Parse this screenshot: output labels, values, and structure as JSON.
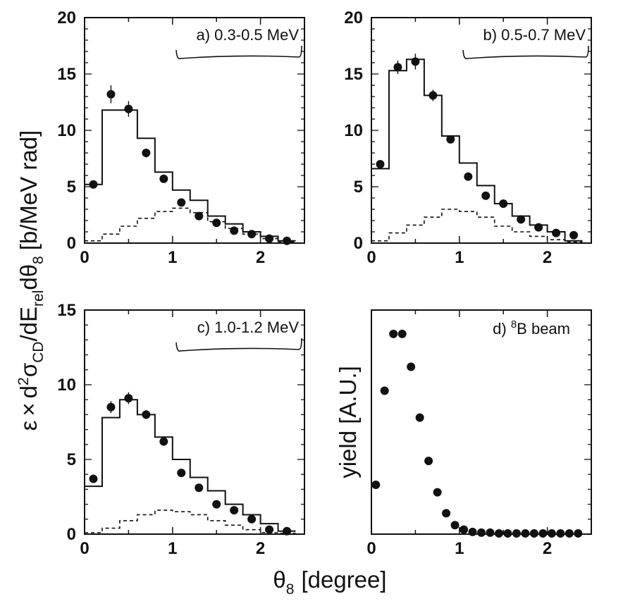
{
  "figure": {
    "ylabel_left": "ε × d²σCD/dErel dθ8 [b/MeV rad]",
    "ylabel_left_parts": {
      "eps": "ε",
      "times": "×",
      "d": "d",
      "sup2": "2",
      "sigma": "σ",
      "sub_cd": "CD",
      "slash_de": "/dE",
      "sub_rel": "rel",
      "dtheta": "dθ",
      "sub_8": "8",
      "unit": "[b/MeV rad]"
    },
    "xlabel": "θ8 [degree]",
    "xlabel_parts": {
      "theta": "θ",
      "sub": "8",
      "unit": "[degree]"
    }
  },
  "chart_data": [
    {
      "id": "a",
      "type": "line",
      "label": "a) 0.3-0.5 MeV",
      "xlim": [
        0,
        2.5
      ],
      "ylim": [
        0,
        20
      ],
      "xticks": [
        0,
        1,
        2
      ],
      "yticks": [
        0,
        5,
        10,
        15,
        20
      ],
      "points": {
        "x": [
          0.1,
          0.3,
          0.5,
          0.7,
          0.9,
          1.1,
          1.3,
          1.5,
          1.7,
          1.9,
          2.1,
          2.3
        ],
        "y": [
          5.2,
          13.2,
          11.9,
          8.0,
          5.7,
          3.6,
          2.4,
          1.8,
          1.1,
          0.8,
          0.4,
          0.2
        ],
        "err": [
          0.3,
          0.8,
          0.7,
          0.4,
          0.3,
          0.3,
          0.2,
          0.2,
          0.15,
          0.15,
          0.1,
          0.1
        ]
      },
      "histogram_solid": {
        "edges": [
          0,
          0.2,
          0.4,
          0.6,
          0.8,
          1.0,
          1.2,
          1.4,
          1.6,
          1.8,
          2.0,
          2.2,
          2.4
        ],
        "values": [
          5.2,
          11.8,
          11.8,
          9.3,
          6.3,
          4.7,
          3.8,
          2.4,
          1.7,
          1.0,
          0.6,
          0.2
        ]
      },
      "histogram_dashed": {
        "edges": [
          0,
          0.2,
          0.4,
          0.6,
          0.8,
          1.0,
          1.2,
          1.4,
          1.6,
          1.8,
          2.0,
          2.2,
          2.4
        ],
        "values": [
          0.2,
          0.8,
          1.5,
          2.2,
          2.8,
          3.1,
          2.7,
          1.9,
          1.3,
          0.8,
          0.4,
          0.1
        ]
      }
    },
    {
      "id": "b",
      "type": "line",
      "label": "b) 0.5-0.7 MeV",
      "xlim": [
        0,
        2.5
      ],
      "ylim": [
        0,
        20
      ],
      "xticks": [
        0,
        1,
        2
      ],
      "yticks": [
        0,
        5,
        10,
        15,
        20
      ],
      "points": {
        "x": [
          0.1,
          0.3,
          0.5,
          0.7,
          0.9,
          1.1,
          1.3,
          1.5,
          1.7,
          1.9,
          2.1,
          2.3
        ],
        "y": [
          7.0,
          15.6,
          16.1,
          13.1,
          9.2,
          5.9,
          4.2,
          3.5,
          2.1,
          1.4,
          0.9,
          0.7
        ],
        "err": [
          0.3,
          0.6,
          0.7,
          0.5,
          0.3,
          0.3,
          0.2,
          0.2,
          0.15,
          0.15,
          0.1,
          0.1
        ]
      },
      "histogram_solid": {
        "edges": [
          0,
          0.2,
          0.4,
          0.6,
          0.8,
          1.0,
          1.2,
          1.4,
          1.6,
          1.8,
          2.0,
          2.2,
          2.4
        ],
        "values": [
          6.6,
          15.3,
          16.3,
          13.1,
          9.5,
          7.1,
          5.1,
          3.5,
          2.4,
          1.6,
          1.0,
          0.2
        ]
      },
      "histogram_dashed": {
        "edges": [
          0,
          0.2,
          0.4,
          0.6,
          0.8,
          1.0,
          1.2,
          1.4,
          1.6,
          1.8,
          2.0,
          2.2,
          2.4
        ],
        "values": [
          0.2,
          0.9,
          1.6,
          2.3,
          3.0,
          2.8,
          2.3,
          1.5,
          1.0,
          0.6,
          0.3,
          0.1
        ]
      }
    },
    {
      "id": "c",
      "type": "line",
      "label": "c) 1.0-1.2 MeV",
      "xlim": [
        0,
        2.5
      ],
      "ylim": [
        0,
        15
      ],
      "xticks": [
        0,
        1,
        2
      ],
      "yticks": [
        0,
        5,
        10,
        15
      ],
      "points": {
        "x": [
          0.1,
          0.3,
          0.5,
          0.7,
          0.9,
          1.1,
          1.3,
          1.5,
          1.7,
          1.9,
          2.1,
          2.3
        ],
        "y": [
          3.7,
          8.5,
          9.1,
          8.0,
          6.2,
          4.1,
          3.1,
          2.0,
          1.6,
          1.0,
          0.3,
          0.2
        ],
        "err": [
          0.2,
          0.4,
          0.4,
          0.3,
          0.2,
          0.2,
          0.2,
          0.15,
          0.15,
          0.1,
          0.1,
          0.1
        ]
      },
      "histogram_solid": {
        "edges": [
          0,
          0.2,
          0.4,
          0.6,
          0.8,
          1.0,
          1.2,
          1.4,
          1.6,
          1.8,
          2.0,
          2.2,
          2.4
        ],
        "values": [
          3.2,
          7.8,
          9.0,
          8.0,
          6.5,
          5.0,
          3.8,
          2.9,
          2.0,
          1.3,
          0.7,
          0.2
        ]
      },
      "histogram_dashed": {
        "edges": [
          0,
          0.2,
          0.4,
          0.6,
          0.8,
          1.0,
          1.2,
          1.4,
          1.6,
          1.8,
          2.0,
          2.2,
          2.4
        ],
        "values": [
          0.1,
          0.4,
          0.9,
          1.3,
          1.6,
          1.5,
          1.3,
          0.9,
          0.6,
          0.3,
          0.1,
          0.05
        ]
      }
    },
    {
      "id": "d",
      "type": "scatter",
      "label_prefix": "d)",
      "label_sup": "8",
      "label_main": "B beam",
      "ylabel": "yield [A.U.]",
      "xlim": [
        0,
        2.5
      ],
      "ylim": [
        0,
        15
      ],
      "xticks": [
        0,
        1,
        2
      ],
      "yticks": [],
      "points": {
        "x": [
          0.05,
          0.15,
          0.25,
          0.35,
          0.45,
          0.55,
          0.65,
          0.75,
          0.85,
          0.95,
          1.05,
          1.15,
          1.25,
          1.35,
          1.45,
          1.55,
          1.65,
          1.75,
          1.85,
          1.95,
          2.05,
          2.15,
          2.25,
          2.35
        ],
        "y": [
          3.3,
          9.6,
          13.4,
          13.4,
          11.2,
          7.8,
          4.9,
          2.8,
          1.4,
          0.6,
          0.3,
          0.15,
          0.1,
          0.1,
          0.05,
          0.05,
          0.05,
          0.05,
          0.05,
          0.05,
          0.05,
          0.05,
          0.05,
          0.05
        ]
      }
    }
  ]
}
